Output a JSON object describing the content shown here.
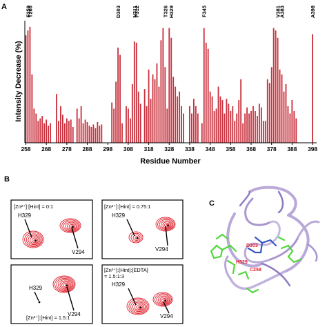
{
  "panel_a": {
    "letter": "A",
    "chart_data": {
      "type": "bar",
      "ylabel": "Intensity Decrease (%)",
      "xlabel": "Residue Number",
      "xlim": [
        257.5,
        400
      ],
      "ylim": [
        0,
        100
      ],
      "bar_color": "#c8313d",
      "x_ticks": [
        258,
        268,
        278,
        288,
        298,
        308,
        318,
        328,
        338,
        348,
        358,
        368,
        378,
        388,
        398
      ],
      "annotations": [
        {
          "label": "F259",
          "residue": 259
        },
        {
          "label": "T260",
          "residue": 260
        },
        {
          "label": "D303",
          "residue": 303
        },
        {
          "label": "N311",
          "residue": 311
        },
        {
          "label": "F312",
          "residue": 312
        },
        {
          "label": "T326",
          "residue": 326
        },
        {
          "label": "H329",
          "residue": 329
        },
        {
          "label": "F345",
          "residue": 345
        },
        {
          "label": "V381",
          "residue": 381
        },
        {
          "label": "A383",
          "residue": 383
        },
        {
          "label": "A398",
          "residue": 398
        }
      ],
      "residues": [
        258,
        259,
        260,
        261,
        262,
        263,
        264,
        265,
        266,
        267,
        268,
        269,
        270,
        271,
        272,
        273,
        274,
        275,
        276,
        277,
        278,
        279,
        280,
        281,
        282,
        283,
        284,
        285,
        286,
        287,
        288,
        289,
        290,
        291,
        292,
        293,
        294,
        295,
        296,
        297,
        298,
        299,
        300,
        301,
        302,
        303,
        304,
        305,
        306,
        307,
        308,
        309,
        310,
        311,
        312,
        313,
        314,
        315,
        316,
        317,
        318,
        319,
        320,
        321,
        322,
        323,
        324,
        325,
        326,
        327,
        328,
        329,
        330,
        331,
        332,
        333,
        334,
        335,
        336,
        337,
        338,
        339,
        340,
        341,
        342,
        343,
        344,
        345,
        346,
        347,
        348,
        349,
        350,
        351,
        352,
        353,
        354,
        355,
        356,
        357,
        358,
        359,
        360,
        361,
        362,
        363,
        364,
        365,
        366,
        367,
        368,
        369,
        370,
        371,
        372,
        373,
        374,
        375,
        376,
        377,
        378,
        379,
        380,
        381,
        382,
        383,
        384,
        385,
        386,
        387,
        388,
        389,
        390,
        391,
        392,
        393,
        394,
        395,
        396,
        397,
        398
      ],
      "values": [
        88,
        92,
        95,
        56,
        28,
        24,
        18,
        20,
        22,
        16,
        19,
        14,
        16,
        0,
        0,
        40,
        18,
        30,
        23,
        16,
        20,
        18,
        19,
        13,
        0,
        28,
        20,
        30,
        16,
        19,
        17,
        14,
        13,
        15,
        12,
        17,
        14,
        15,
        0,
        0,
        0,
        0,
        33,
        28,
        50,
        78,
        72,
        16,
        0,
        30,
        28,
        20,
        48,
        83,
        82,
        42,
        32,
        0,
        44,
        30,
        60,
        36,
        56,
        52,
        65,
        46,
        84,
        94,
        62,
        28,
        94,
        86,
        54,
        46,
        38,
        42,
        30,
        24,
        0,
        0,
        30,
        24,
        36,
        30,
        24,
        0,
        16,
        94,
        82,
        77,
        42,
        38,
        26,
        28,
        46,
        38,
        35,
        24,
        36,
        32,
        26,
        30,
        18,
        24,
        35,
        52,
        16,
        24,
        29,
        24,
        26,
        30,
        26,
        22,
        32,
        29,
        18,
        18,
        52,
        49,
        62,
        94,
        92,
        86,
        60,
        56,
        42,
        48,
        30,
        24,
        35,
        26,
        20,
        0,
        0,
        0,
        0,
        0,
        0,
        0,
        89
      ]
    }
  },
  "panel_b": {
    "letter": "B",
    "boxes": [
      {
        "label": "[Zn²⁺]:[Hint] = 0:1",
        "peak1": "H329",
        "peak2": "V294"
      },
      {
        "label": "[Zn²⁺]:[Hint] = 0.75:1",
        "peak1": "H329",
        "peak2": "V294"
      },
      {
        "label": "[Zn²⁺]:[Hint] = 1.5:1",
        "peak1": "H329",
        "peak2": "V294"
      },
      {
        "label": "[Zn²⁺]:[Hint]:[EDTA] = 1.5:1:3",
        "peak1": "H329",
        "peak2": "V294"
      }
    ]
  },
  "panel_c": {
    "letter": "C",
    "labels": {
      "d303": "D303",
      "h329": "H329",
      "c258": "C258"
    }
  }
}
